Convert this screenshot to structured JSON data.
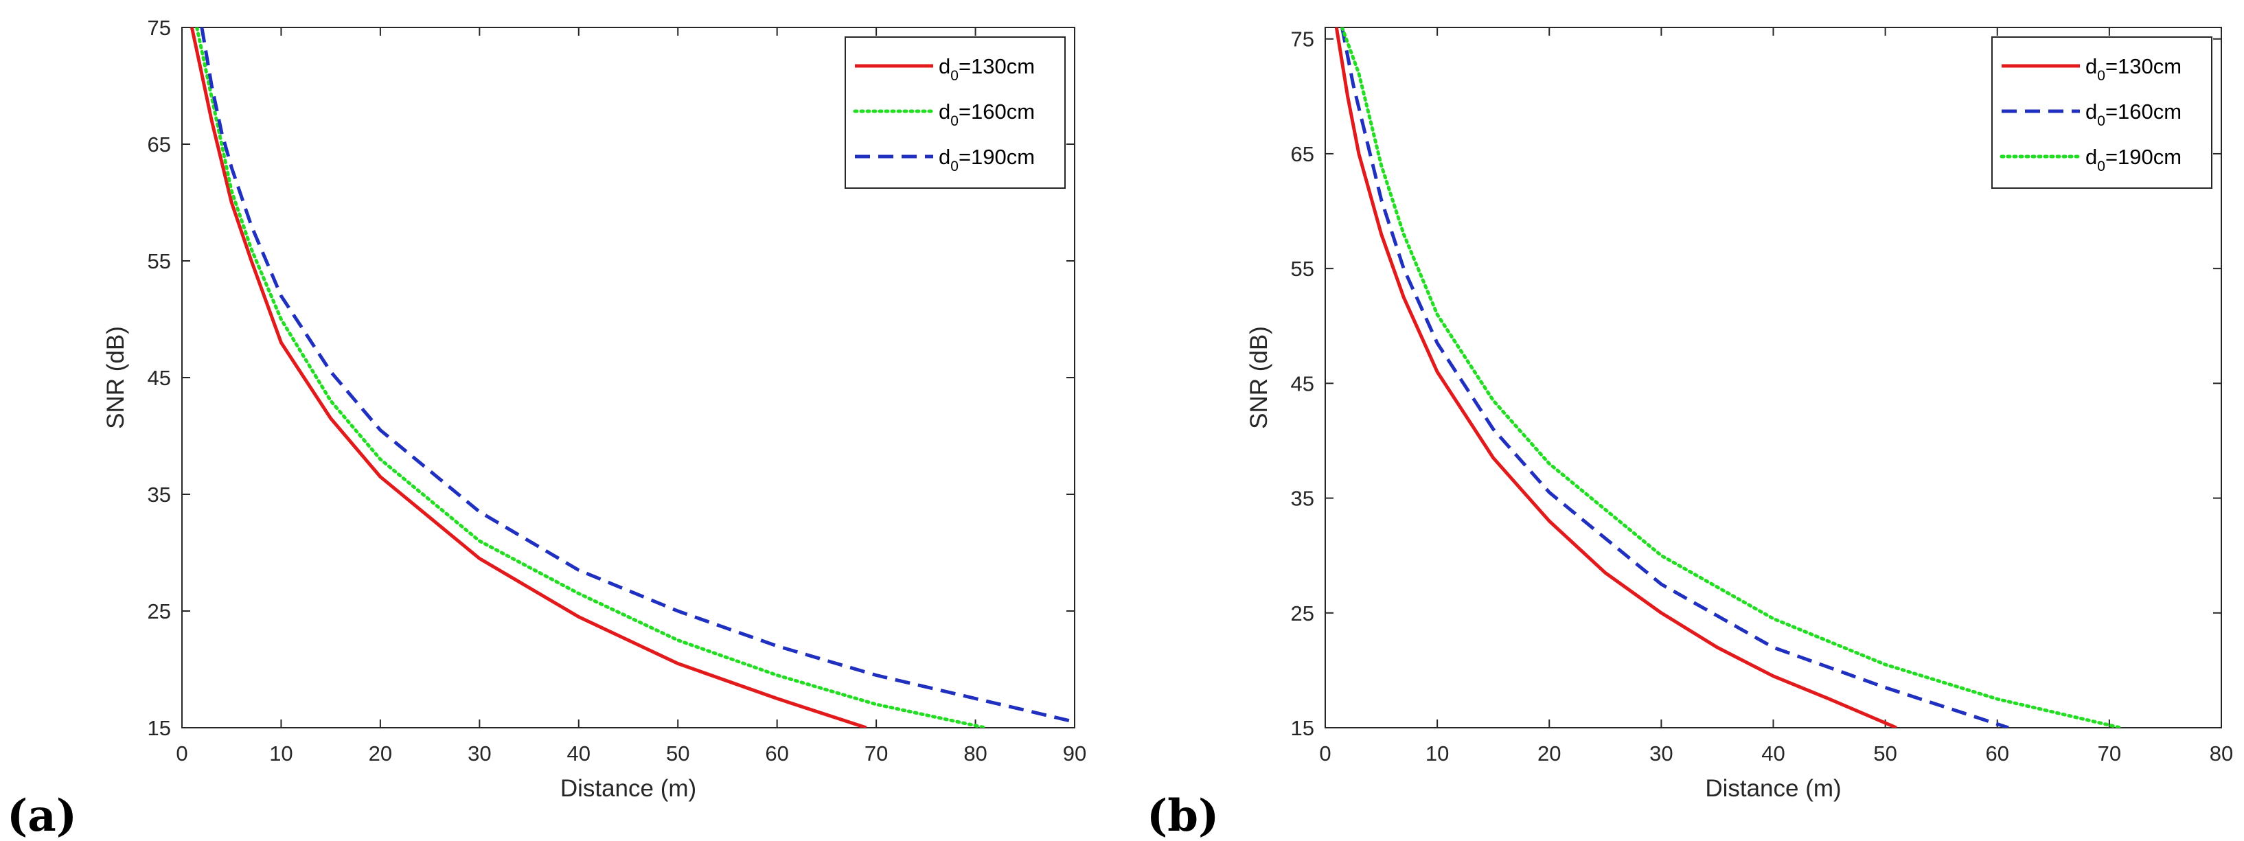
{
  "chart_data": [
    {
      "type": "line",
      "panel_label": "(a)",
      "title": "",
      "xlabel": "Distance (m)",
      "ylabel": "SNR (dB)",
      "xlim": [
        0,
        90
      ],
      "ylim": [
        15,
        75
      ],
      "xticks": [
        "0",
        "10",
        "20",
        "30",
        "40",
        "50",
        "60",
        "70",
        "80",
        "90"
      ],
      "yticks": [
        "15",
        "25",
        "35",
        "45",
        "55",
        "65",
        "75"
      ],
      "legend_position": "top-right",
      "series": [
        {
          "name_main": "d",
          "name_sub": "0",
          "name_rest": "=130cm",
          "color": "#e31a1c",
          "style": "solid",
          "x": [
            1,
            2,
            3,
            5,
            7,
            10,
            15,
            20,
            30,
            40,
            50,
            60,
            69
          ],
          "y": [
            75,
            71,
            67,
            60,
            55,
            48,
            41.5,
            36.5,
            29.5,
            24.5,
            20.5,
            17.5,
            15
          ]
        },
        {
          "name_main": "d",
          "name_sub": "0",
          "name_rest": "=160cm",
          "color": "#22dd22",
          "style": "dotted",
          "x": [
            1.5,
            2.5,
            3.5,
            5,
            7,
            10,
            15,
            20,
            30,
            40,
            50,
            60,
            70,
            81
          ],
          "y": [
            75,
            71,
            67,
            61,
            56,
            50,
            43,
            38,
            31,
            26.5,
            22.5,
            19.5,
            17,
            15
          ]
        },
        {
          "name_main": "d",
          "name_sub": "0",
          "name_rest": "=190cm",
          "color": "#1f2fbf",
          "style": "dashed",
          "x": [
            2,
            3,
            4,
            5,
            7,
            10,
            15,
            20,
            30,
            40,
            50,
            60,
            70,
            80,
            90
          ],
          "y": [
            75,
            70,
            66,
            63,
            58,
            52,
            45.5,
            40.5,
            33.5,
            28.5,
            25,
            22,
            19.5,
            17.5,
            15.5
          ]
        }
      ]
    },
    {
      "type": "line",
      "panel_label": "(b)",
      "title": "",
      "xlabel": "Distance (m)",
      "ylabel": "SNR (dB)",
      "xlim": [
        0,
        80
      ],
      "ylim": [
        15,
        76
      ],
      "xticks": [
        "0",
        "10",
        "20",
        "30",
        "40",
        "50",
        "60",
        "70",
        "80"
      ],
      "yticks": [
        "15",
        "25",
        "35",
        "45",
        "55",
        "65",
        "75"
      ],
      "legend_position": "top-right",
      "series": [
        {
          "name_main": "d",
          "name_sub": "0",
          "name_rest": "=130cm",
          "color": "#e31a1c",
          "style": "solid",
          "x": [
            1,
            2,
            3,
            5,
            7,
            10,
            15,
            20,
            25,
            30,
            35,
            40,
            45,
            51
          ],
          "y": [
            76,
            70,
            65,
            58,
            52.5,
            46,
            38.5,
            33,
            28.5,
            25,
            22,
            19.5,
            17.5,
            15
          ]
        },
        {
          "name_main": "d",
          "name_sub": "0",
          "name_rest": "=160cm",
          "color": "#1f2fbf",
          "style": "dashed",
          "x": [
            1.5,
            2.5,
            3.5,
            5,
            7,
            10,
            15,
            20,
            30,
            40,
            50,
            61
          ],
          "y": [
            76,
            71,
            67,
            61,
            55,
            48.5,
            41,
            35.5,
            27.5,
            22,
            18.5,
            15
          ]
        },
        {
          "name_main": "d",
          "name_sub": "0",
          "name_rest": "=190cm",
          "color": "#22dd22",
          "style": "dotted",
          "x": [
            1.5,
            3,
            4,
            5,
            7,
            10,
            15,
            20,
            30,
            40,
            50,
            60,
            71
          ],
          "y": [
            76,
            72,
            68,
            64,
            58,
            51,
            43.5,
            38,
            30,
            24.5,
            20.5,
            17.5,
            15
          ]
        }
      ]
    }
  ]
}
